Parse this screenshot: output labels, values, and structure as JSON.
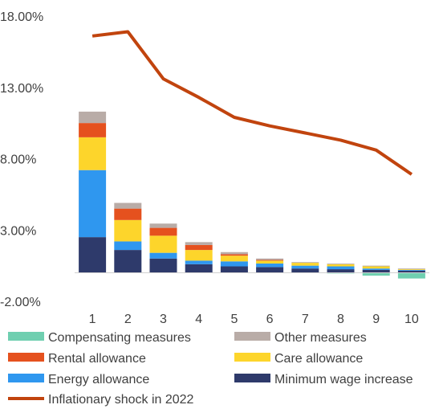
{
  "chart_data": {
    "type": "bar",
    "stacked": true,
    "categories": [
      "1",
      "2",
      "3",
      "4",
      "5",
      "6",
      "7",
      "8",
      "9",
      "10"
    ],
    "yticks": [
      "18.00%",
      "13.00%",
      "8.00%",
      "3.00%",
      "-2.00%"
    ],
    "ylim": [
      -2,
      18
    ],
    "grid": false,
    "legend_position": "bottom",
    "series": [
      {
        "name": "Minimum wage increase",
        "kind": "bar",
        "color": "#2e3a6b",
        "values": [
          2.5,
          1.6,
          1.0,
          0.6,
          0.45,
          0.4,
          0.3,
          0.25,
          0.2,
          0.15
        ]
      },
      {
        "name": "Energy allowance",
        "kind": "bar",
        "color": "#2f97ef",
        "values": [
          4.7,
          0.6,
          0.4,
          0.25,
          0.35,
          0.25,
          0.2,
          0.2,
          0.1,
          0.05
        ]
      },
      {
        "name": "Care allowance",
        "kind": "bar",
        "color": "#fdd52b",
        "values": [
          2.3,
          1.5,
          1.2,
          0.75,
          0.4,
          0.2,
          0.2,
          0.15,
          0.15,
          0.05
        ]
      },
      {
        "name": "Rental allowance",
        "kind": "bar",
        "color": "#e5511e",
        "values": [
          1.0,
          0.8,
          0.55,
          0.35,
          0.1,
          0.05,
          0.0,
          0.0,
          0.0,
          0.0
        ]
      },
      {
        "name": "Other measures",
        "kind": "bar",
        "color": "#b9aca7",
        "values": [
          0.8,
          0.4,
          0.3,
          0.2,
          0.15,
          0.1,
          0.05,
          0.05,
          0.05,
          0.05
        ]
      },
      {
        "name": "Compensating measures",
        "kind": "bar",
        "color": "#6fcfb0",
        "values": [
          0,
          0,
          0,
          0,
          0,
          0,
          0,
          -0.05,
          -0.2,
          -0.4
        ]
      },
      {
        "name": "Inflationary shock in 2022",
        "kind": "line",
        "color": "#c1440e",
        "values": [
          16.6,
          16.9,
          13.6,
          12.3,
          10.9,
          10.3,
          9.8,
          9.3,
          8.6,
          6.9
        ]
      }
    ],
    "legend": [
      {
        "label": "Compensating measures",
        "color": "#6fcfb0",
        "kind": "box"
      },
      {
        "label": "Other measures",
        "color": "#b9aca7",
        "kind": "box"
      },
      {
        "label": "Rental allowance",
        "color": "#e5511e",
        "kind": "box"
      },
      {
        "label": "Care allowance",
        "color": "#fdd52b",
        "kind": "box"
      },
      {
        "label": "Energy allowance",
        "color": "#2f97ef",
        "kind": "box"
      },
      {
        "label": "Minimum wage increase",
        "color": "#2e3a6b",
        "kind": "box"
      },
      {
        "label": "Inflationary shock in 2022",
        "color": "#c1440e",
        "kind": "line"
      }
    ]
  }
}
